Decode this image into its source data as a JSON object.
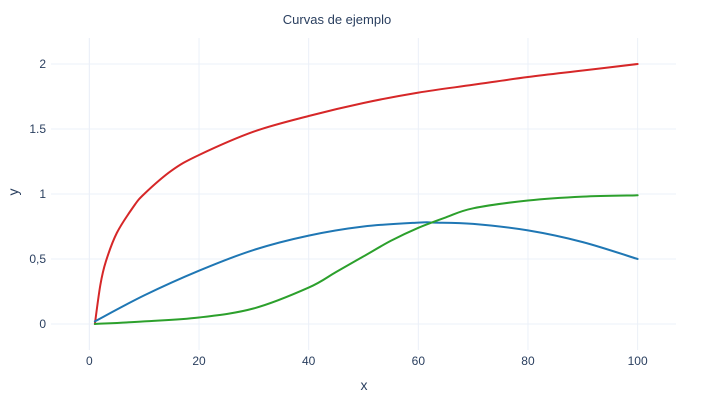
{
  "chart_data": {
    "type": "line",
    "title": "Curvas de ejemplo",
    "xlabel": "x",
    "ylabel": "y",
    "xlim": [
      -7,
      107
    ],
    "ylim": [
      -0.2,
      2.2
    ],
    "xticks": [
      0,
      20,
      40,
      60,
      80,
      100
    ],
    "xtick_labels": [
      "0",
      "20",
      "40",
      "60",
      "80",
      "100"
    ],
    "yticks": [
      0,
      0.5,
      1,
      1.5,
      2
    ],
    "ytick_labels": [
      "0",
      "0,5",
      "1",
      "1.5",
      "2"
    ],
    "grid": true,
    "legend": "none",
    "series": [
      {
        "color": "#d62728",
        "x": [
          1,
          2,
          3,
          5,
          8,
          10,
          15,
          20,
          30,
          40,
          50,
          60,
          70,
          80,
          90,
          100
        ],
        "y": [
          0.0,
          0.3,
          0.48,
          0.7,
          0.9,
          1.0,
          1.18,
          1.3,
          1.48,
          1.6,
          1.7,
          1.78,
          1.84,
          1.9,
          1.95,
          2.0
        ]
      },
      {
        "color": "#1f77b4",
        "x": [
          1,
          10,
          20,
          30,
          40,
          50,
          60,
          63,
          70,
          80,
          90,
          100
        ],
        "y": [
          0.02,
          0.22,
          0.41,
          0.57,
          0.68,
          0.75,
          0.78,
          0.78,
          0.77,
          0.72,
          0.63,
          0.5
        ]
      },
      {
        "color": "#2ca02c",
        "x": [
          1,
          10,
          20,
          30,
          40,
          45,
          50,
          55,
          60,
          65,
          70,
          80,
          90,
          100
        ],
        "y": [
          0.0,
          0.02,
          0.05,
          0.12,
          0.28,
          0.4,
          0.52,
          0.64,
          0.74,
          0.82,
          0.89,
          0.95,
          0.98,
          0.99
        ]
      }
    ]
  }
}
